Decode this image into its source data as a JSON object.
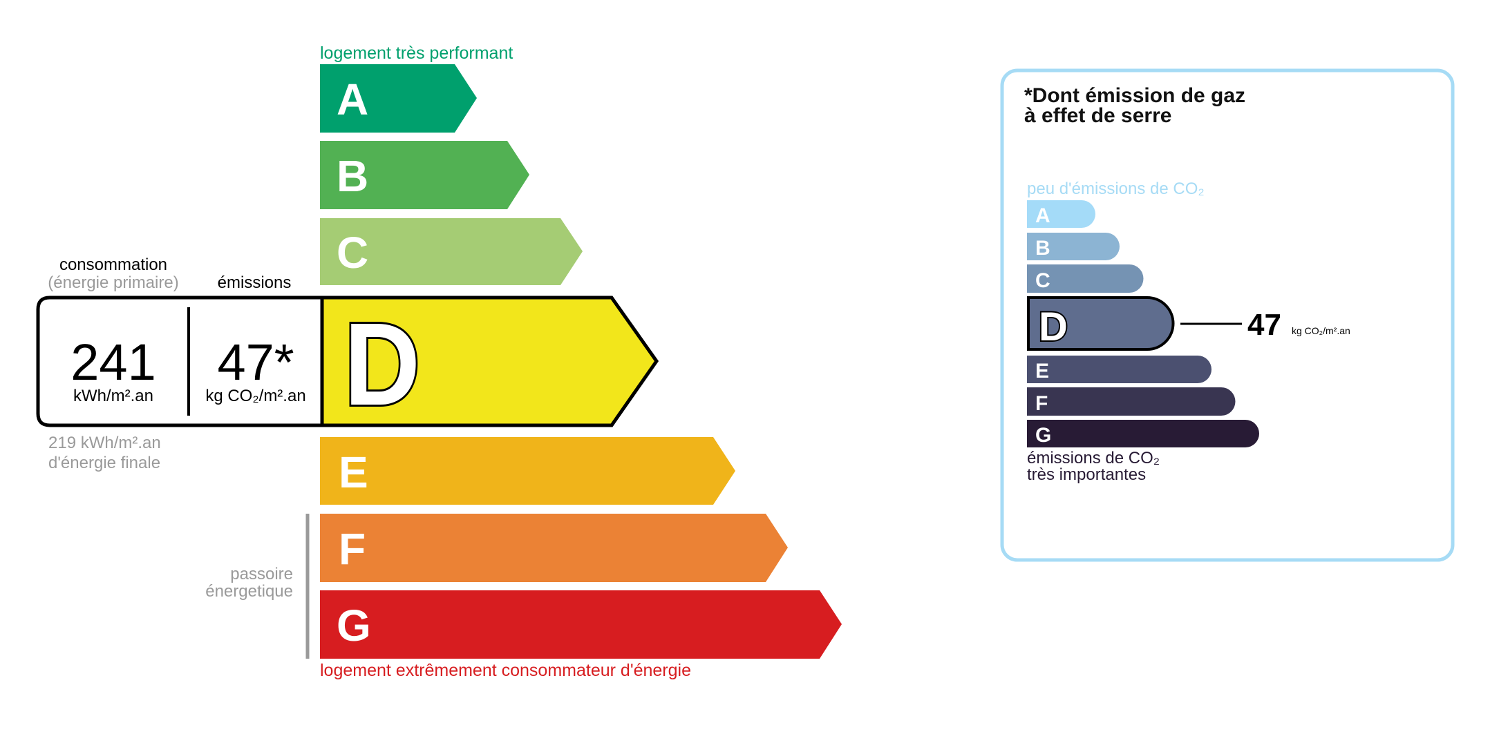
{
  "energy": {
    "top_label": "logement très performant",
    "bottom_label": "logement extrêmement consommateur d'énergie",
    "passoire": [
      "passoire",
      "énergetique"
    ],
    "classes": [
      {
        "letter": "A",
        "color": "#00a06d"
      },
      {
        "letter": "B",
        "color": "#52b153"
      },
      {
        "letter": "C",
        "color": "#a5cc74"
      },
      {
        "letter": "D",
        "color": "#f2e61b"
      },
      {
        "letter": "E",
        "color": "#f0b41a"
      },
      {
        "letter": "F",
        "color": "#eb8235"
      },
      {
        "letter": "G",
        "color": "#d71d20"
      }
    ],
    "current_class": "D",
    "consumption_header": "consommation",
    "consumption_subheader": "(énergie primaire)",
    "emissions_header": "émissions",
    "consumption_value": "241",
    "consumption_unit": "kWh/m².an",
    "emissions_value": "47*",
    "emissions_unit": "kg CO₂/m².an",
    "final_energy_value": "219 kWh/m².an",
    "final_energy_label": "d'énergie finale"
  },
  "ghg": {
    "title_line1": "*Dont émission de gaz",
    "title_line2": "à effet de serre",
    "top_label": "peu d'émissions de CO₂",
    "bottom_label_line1": "émissions de CO₂",
    "bottom_label_line2": "très importantes",
    "classes": [
      {
        "letter": "A",
        "color": "#a4dbf8"
      },
      {
        "letter": "B",
        "color": "#8cb4d3"
      },
      {
        "letter": "C",
        "color": "#7593b3"
      },
      {
        "letter": "D",
        "color": "#5f6d8e"
      },
      {
        "letter": "E",
        "color": "#4b5070"
      },
      {
        "letter": "F",
        "color": "#393551"
      },
      {
        "letter": "G",
        "color": "#281b35"
      }
    ],
    "current_class": "D",
    "value": "47",
    "unit": "kg CO₂/m².an",
    "border_color": "#a6dbf5"
  }
}
